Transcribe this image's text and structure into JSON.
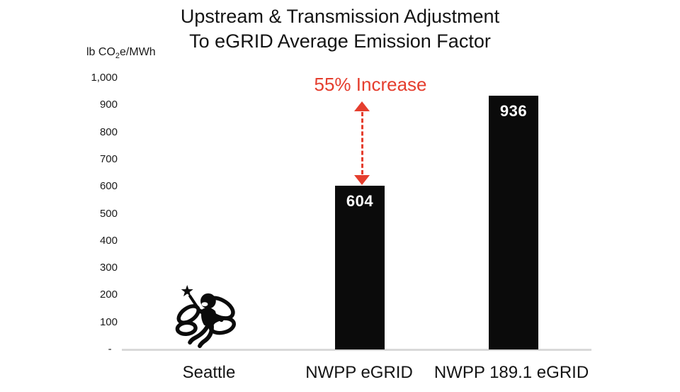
{
  "title": {
    "line1": "Upstream & Transmission Adjustment",
    "line2": "To eGRID Average Emission Factor"
  },
  "y_axis": {
    "unit_prefix": "lb CO",
    "unit_sub": "2",
    "unit_suffix": "e/MWh",
    "ticks": [
      {
        "label": "1,000",
        "value": 1000
      },
      {
        "label": "900",
        "value": 900
      },
      {
        "label": "800",
        "value": 800
      },
      {
        "label": "700",
        "value": 700
      },
      {
        "label": "600",
        "value": 600
      },
      {
        "label": "500",
        "value": 500
      },
      {
        "label": "400",
        "value": 400
      },
      {
        "label": "300",
        "value": 300
      },
      {
        "label": "200",
        "value": 200
      },
      {
        "label": "100",
        "value": 100
      },
      {
        "label": "-  ",
        "value": 0
      }
    ]
  },
  "annotation": {
    "label": "55% Increase"
  },
  "bars": [
    {
      "category": "Seattle",
      "value": null,
      "marker": "fairy-icon"
    },
    {
      "category": "NWPP eGRID",
      "value": 604,
      "value_label": "604"
    },
    {
      "category": "NWPP 189.1 eGRID",
      "value": 936,
      "value_label": "936"
    }
  ],
  "chart_data": {
    "type": "bar",
    "title": "Upstream & Transmission Adjustment To eGRID Average Emission Factor",
    "xlabel": "",
    "ylabel": "lb CO2e/MWh",
    "categories": [
      "Seattle",
      "NWPP eGRID",
      "NWPP 189.1 eGRID"
    ],
    "values": [
      null,
      604,
      936
    ],
    "ylim": [
      0,
      1000
    ],
    "ytick_interval": 100,
    "grid": false,
    "legend": false,
    "bar_color": "#0b0b0b",
    "annotations": [
      "55% Increase"
    ]
  },
  "colors": {
    "bar": "#0b0b0b",
    "annotation_red": "#e53e2e",
    "axis_line": "#d9d9d9",
    "text": "#1a1a1a",
    "bar_label_text": "#ffffff"
  }
}
